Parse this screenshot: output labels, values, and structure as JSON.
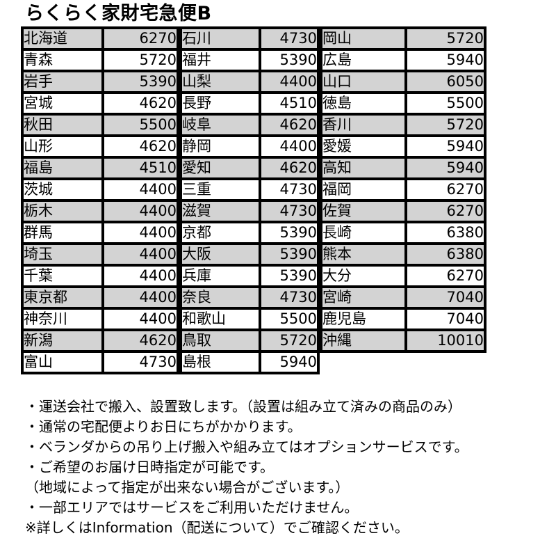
{
  "title": "らくらく家財宅急便B",
  "colors": {
    "border": "#000000",
    "row_shaded": "#d3d3d3",
    "row_plain": "#ffffff",
    "text": "#000000"
  },
  "table": {
    "columns": [
      {
        "rows": [
          [
            "北海道",
            6270
          ],
          [
            "青森",
            5720
          ],
          [
            "岩手",
            5390
          ],
          [
            "宮城",
            4620
          ],
          [
            "秋田",
            5500
          ],
          [
            "山形",
            4620
          ],
          [
            "福島",
            4510
          ],
          [
            "茨城",
            4400
          ],
          [
            "栃木",
            4400
          ],
          [
            "群馬",
            4400
          ],
          [
            "埼玉",
            4400
          ],
          [
            "千葉",
            4400
          ],
          [
            "東京都",
            4400
          ],
          [
            "神奈川",
            4400
          ],
          [
            "新潟",
            4620
          ],
          [
            "富山",
            4730
          ]
        ]
      },
      {
        "rows": [
          [
            "石川",
            4730
          ],
          [
            "福井",
            5390
          ],
          [
            "山梨",
            4400
          ],
          [
            "長野",
            4510
          ],
          [
            "岐阜",
            4620
          ],
          [
            "静岡",
            4400
          ],
          [
            "愛知",
            4620
          ],
          [
            "三重",
            4730
          ],
          [
            "滋賀",
            4730
          ],
          [
            "京都",
            5390
          ],
          [
            "大阪",
            5390
          ],
          [
            "兵庫",
            5390
          ],
          [
            "奈良",
            4730
          ],
          [
            "和歌山",
            5500
          ],
          [
            "鳥取",
            5720
          ],
          [
            "島根",
            5940
          ]
        ]
      },
      {
        "rows": [
          [
            "岡山",
            5720
          ],
          [
            "広島",
            5940
          ],
          [
            "山口",
            6050
          ],
          [
            "徳島",
            5500
          ],
          [
            "香川",
            5720
          ],
          [
            "愛媛",
            5940
          ],
          [
            "高知",
            5940
          ],
          [
            "福岡",
            6270
          ],
          [
            "佐賀",
            6270
          ],
          [
            "長崎",
            6380
          ],
          [
            "熊本",
            6380
          ],
          [
            "大分",
            6270
          ],
          [
            "宮崎",
            7040
          ],
          [
            "鹿児島",
            7040
          ],
          [
            "沖縄",
            10010
          ]
        ]
      }
    ]
  },
  "notes": [
    "・運送会社で搬入、設置致します。（設置は組み立て済みの商品のみ）",
    "・通常の宅配便よりお日にちがかかります。",
    "・ベランダからの吊り上げ搬入や組み立てはオプションサービスです。",
    "・ご希望のお届け日時指定が可能です。",
    "（地域によって指定が出来ない場合がございます。）",
    "・一部エリアではサービスをご利用いただけません。",
    "※詳しくはInformation（配送について）でご確認ください。"
  ]
}
